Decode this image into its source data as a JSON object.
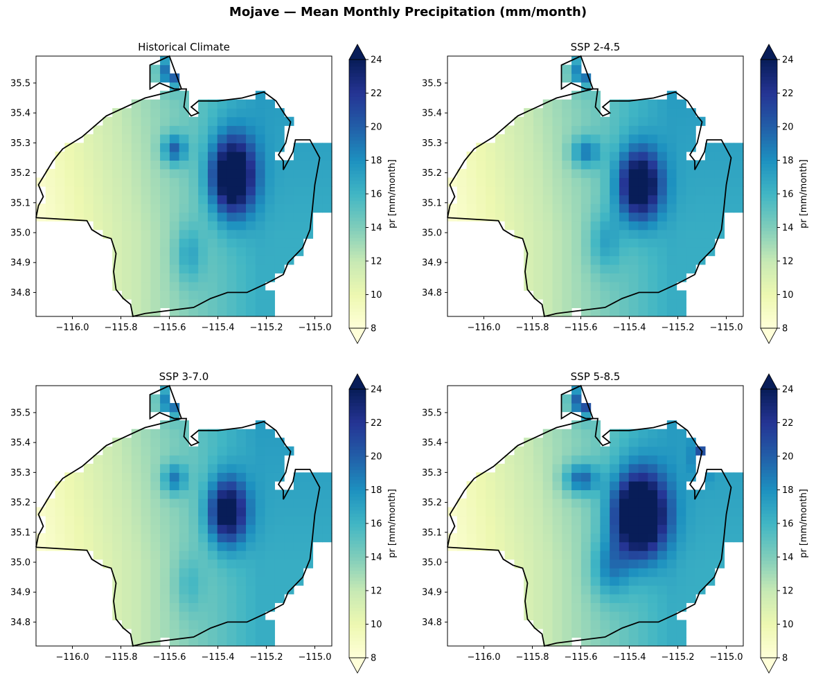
{
  "suptitle": "Mojave — Mean Monthly Precipitation (mm/month)",
  "chart_data": {
    "type": "heatmap",
    "colormap": "YlGnBu",
    "colormap_stops": [
      "#ffffd9",
      "#edf8b1",
      "#c7e9b4",
      "#7fcdbb",
      "#41b6c4",
      "#1d91c0",
      "#225ea8",
      "#253494",
      "#081d58"
    ],
    "vmin": 8,
    "vmax": 24,
    "colorbar_extend": "both",
    "colorbar_label": "pr [mm/month]",
    "colorbar_ticks": [
      8,
      10,
      12,
      14,
      16,
      18,
      20,
      22,
      24
    ],
    "xlim": [
      -116.15,
      -114.93
    ],
    "ylim": [
      34.72,
      35.59
    ],
    "x_ticks": [
      -116.0,
      -115.8,
      -115.6,
      -115.4,
      -115.2,
      -115.0
    ],
    "x_tick_labels": [
      "−116.0",
      "−115.8",
      "−115.6",
      "−115.4",
      "−115.2",
      "−115.0"
    ],
    "y_ticks": [
      34.8,
      34.9,
      35.0,
      35.1,
      35.2,
      35.3,
      35.4,
      35.5
    ],
    "y_tick_labels": [
      "34.8",
      "34.9",
      "35.0",
      "35.1",
      "35.2",
      "35.3",
      "35.4",
      "35.5"
    ],
    "boundary_color": "#000000",
    "panels": [
      {
        "title": "Historical Climate",
        "hotspots": [
          [
            -115.34,
            35.19,
            0.09,
            0.13,
            12
          ],
          [
            -115.58,
            35.28,
            0.05,
            0.05,
            6
          ],
          [
            -115.59,
            35.54,
            0.05,
            0.05,
            7
          ],
          [
            -115.52,
            34.93,
            0.06,
            0.1,
            3
          ]
        ]
      },
      {
        "title": "SSP 2-4.5",
        "hotspots": [
          [
            -115.36,
            35.16,
            0.09,
            0.12,
            11
          ],
          [
            -115.58,
            35.27,
            0.06,
            0.05,
            5
          ],
          [
            -115.59,
            35.54,
            0.05,
            0.05,
            6
          ],
          [
            -115.5,
            34.97,
            0.07,
            0.1,
            3
          ]
        ]
      },
      {
        "title": "SSP 3-7.0",
        "hotspots": [
          [
            -115.36,
            35.17,
            0.08,
            0.11,
            10
          ],
          [
            -115.58,
            35.28,
            0.05,
            0.05,
            5
          ],
          [
            -115.59,
            35.54,
            0.05,
            0.05,
            6
          ],
          [
            -115.52,
            34.93,
            0.06,
            0.1,
            2
          ]
        ]
      },
      {
        "title": "SSP 5-8.5",
        "hotspots": [
          [
            -115.36,
            35.16,
            0.11,
            0.14,
            14
          ],
          [
            -115.6,
            35.28,
            0.07,
            0.05,
            6
          ],
          [
            -115.59,
            35.54,
            0.05,
            0.05,
            8
          ],
          [
            -115.1,
            35.35,
            0.04,
            0.06,
            4
          ],
          [
            -115.48,
            34.98,
            0.08,
            0.1,
            4
          ]
        ]
      }
    ],
    "base_field": {
      "west_value": 8.2,
      "gradient_per_degree": 9.0,
      "north_bonus": 2.0,
      "east_value": 16.5
    },
    "region_outline": [
      [
        -116.15,
        35.05
      ],
      [
        -115.94,
        35.04
      ],
      [
        -115.92,
        35.01
      ],
      [
        -115.88,
        34.99
      ],
      [
        -115.84,
        34.98
      ],
      [
        -115.82,
        34.93
      ],
      [
        -115.83,
        34.87
      ],
      [
        -115.82,
        34.81
      ],
      [
        -115.79,
        34.78
      ],
      [
        -115.76,
        34.76
      ],
      [
        -115.75,
        34.72
      ],
      [
        -115.7,
        34.73
      ],
      [
        -115.6,
        34.74
      ],
      [
        -115.5,
        34.75
      ],
      [
        -115.43,
        34.78
      ],
      [
        -115.36,
        34.8
      ],
      [
        -115.28,
        34.8
      ],
      [
        -115.2,
        34.83
      ],
      [
        -115.13,
        34.86
      ],
      [
        -115.11,
        34.9
      ],
      [
        -115.05,
        34.95
      ],
      [
        -115.02,
        35.01
      ],
      [
        -115.01,
        35.08
      ],
      [
        -115.0,
        35.16
      ],
      [
        -114.98,
        35.25
      ],
      [
        -115.02,
        35.31
      ],
      [
        -115.08,
        35.31
      ],
      [
        -115.09,
        35.27
      ],
      [
        -115.11,
        35.24
      ],
      [
        -115.13,
        35.21
      ],
      [
        -115.13,
        35.24
      ],
      [
        -115.15,
        35.26
      ],
      [
        -115.12,
        35.3
      ],
      [
        -115.1,
        35.37
      ],
      [
        -115.12,
        35.39
      ],
      [
        -115.16,
        35.44
      ],
      [
        -115.21,
        35.47
      ],
      [
        -115.3,
        35.45
      ],
      [
        -115.4,
        35.44
      ],
      [
        -115.48,
        35.44
      ],
      [
        -115.51,
        35.42
      ],
      [
        -115.48,
        35.4
      ],
      [
        -115.51,
        35.39
      ],
      [
        -115.54,
        35.42
      ],
      [
        -115.53,
        35.48
      ],
      [
        -115.58,
        35.48
      ],
      [
        -115.64,
        35.5
      ],
      [
        -115.68,
        35.48
      ],
      [
        -115.68,
        35.56
      ],
      [
        -115.6,
        35.59
      ],
      [
        -115.55,
        35.48
      ],
      [
        -115.7,
        35.45
      ],
      [
        -115.86,
        35.39
      ],
      [
        -115.96,
        35.32
      ],
      [
        -116.04,
        35.28
      ],
      [
        -116.08,
        35.24
      ],
      [
        -116.11,
        35.2
      ],
      [
        -116.14,
        35.16
      ],
      [
        -116.12,
        35.12
      ],
      [
        -116.14,
        35.09
      ],
      [
        -116.15,
        35.05
      ]
    ]
  }
}
